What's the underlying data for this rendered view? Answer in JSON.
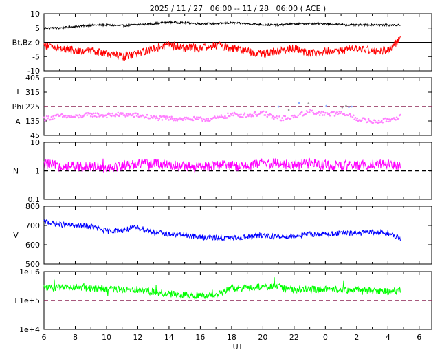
{
  "title": "2025 / 11 / 27   06:00 -- 11 / 28   06:00 ( ACE )",
  "xlabel": "UT",
  "colors": {
    "bt": "#000000",
    "bz": "#ff0000",
    "phi": "#9a9a9a",
    "phi_alt": "#88aaff",
    "angle": "#ff7fff",
    "density": "#ff00ff",
    "speed": "#0000ff",
    "temperature": "#00ff00",
    "ref_dash": "#8b2252"
  },
  "chart_data": [
    {
      "type": "line",
      "panel": "magnetic-field",
      "ylabel": "Bt,Bz",
      "ylim": [
        -10,
        10
      ],
      "ytick_labels": [
        "10",
        "5",
        "0",
        "-5",
        "-10"
      ],
      "xlim": [
        6,
        30.8
      ],
      "xtick_labels": [
        "6",
        "8",
        "10",
        "12",
        "14",
        "16",
        "18",
        "20",
        "22",
        "0",
        "2",
        "4",
        "6"
      ],
      "reference_line": 0,
      "series": [
        {
          "key": "Bt",
          "x": [
            6,
            7,
            8,
            9,
            10,
            11,
            12,
            13,
            14,
            15,
            16,
            17,
            18,
            19,
            20,
            21,
            22,
            23,
            24,
            25,
            26,
            27,
            28,
            28.8
          ],
          "values": [
            5,
            5,
            5.5,
            6,
            6,
            5.8,
            6.2,
            6.5,
            7,
            6.8,
            6.5,
            6.5,
            6.8,
            6.5,
            6.2,
            6,
            6.5,
            6.5,
            6.5,
            6.2,
            6,
            6.2,
            6,
            6
          ]
        },
        {
          "key": "Bz",
          "x": [
            6,
            7,
            8,
            9,
            10,
            11,
            12,
            13,
            14,
            15,
            16,
            17,
            18,
            19,
            20,
            21,
            22,
            23,
            24,
            25,
            26,
            27,
            28,
            28.8
          ],
          "values": [
            -1,
            -2,
            -3,
            -3,
            -4,
            -5,
            -4,
            -2,
            -1,
            -2,
            -2,
            -1,
            -2,
            -3,
            -4,
            -3,
            -2,
            -4,
            -3,
            -3,
            -2,
            -3,
            -3,
            1
          ]
        }
      ]
    },
    {
      "type": "scatter",
      "panel": "angle",
      "ylabel": [
        "T",
        "Phi",
        "A"
      ],
      "ylim": [
        45,
        405
      ],
      "ytick_labels": [
        "405",
        "315",
        "225",
        "135",
        "45"
      ],
      "xlim": [
        6,
        30.8
      ],
      "reference_line": 225,
      "series": [
        {
          "key": "Phi",
          "x": [
            6,
            7,
            8,
            9,
            10,
            11,
            12,
            13,
            14,
            15,
            16,
            17,
            18,
            19,
            20,
            21,
            22,
            23,
            24,
            25,
            26,
            27,
            28,
            28.8
          ],
          "values": [
            150,
            165,
            160,
            175,
            170,
            175,
            170,
            155,
            150,
            150,
            145,
            150,
            175,
            170,
            185,
            150,
            160,
            200,
            175,
            185,
            150,
            130,
            140,
            165
          ]
        }
      ]
    },
    {
      "type": "line",
      "panel": "density",
      "ylabel": "N",
      "yscale": "log",
      "ylim": [
        0.1,
        10
      ],
      "ytick_labels": [
        "10",
        "1",
        "0.1"
      ],
      "xlim": [
        6,
        30.8
      ],
      "reference_line": 1,
      "series": [
        {
          "key": "N",
          "x": [
            6,
            7,
            8,
            9,
            10,
            11,
            12,
            13,
            14,
            15,
            16,
            17,
            18,
            19,
            20,
            21,
            22,
            23,
            24,
            25,
            26,
            27,
            28,
            28.8
          ],
          "values": [
            1.7,
            1.5,
            1.4,
            1.5,
            1.3,
            1.5,
            1.8,
            1.8,
            1.6,
            1.4,
            1.3,
            1.6,
            1.5,
            1.4,
            1.9,
            1.8,
            1.6,
            1.8,
            1.6,
            1.5,
            1.5,
            1.7,
            1.8,
            1.6
          ]
        }
      ]
    },
    {
      "type": "line",
      "panel": "speed",
      "ylabel": "V",
      "ylim": [
        500,
        800
      ],
      "ytick_labels": [
        "800",
        "700",
        "600",
        "500"
      ],
      "xlim": [
        6,
        30.8
      ],
      "series": [
        {
          "key": "V",
          "x": [
            6,
            7,
            8,
            9,
            10,
            11,
            12,
            13,
            14,
            15,
            16,
            17,
            18,
            19,
            20,
            21,
            22,
            23,
            24,
            25,
            26,
            27,
            28,
            28.8
          ],
          "values": [
            720,
            705,
            700,
            695,
            670,
            675,
            690,
            665,
            655,
            650,
            640,
            635,
            635,
            640,
            650,
            640,
            645,
            655,
            655,
            660,
            660,
            665,
            660,
            630
          ]
        }
      ]
    },
    {
      "type": "line",
      "panel": "temperature",
      "ylabel": "T",
      "yscale": "log",
      "ylim": [
        10000,
        1000000
      ],
      "ytick_labels": [
        "1e+6",
        "1e+5",
        "1e+4"
      ],
      "xlim": [
        6,
        30.8
      ],
      "reference_line": 100000,
      "series": [
        {
          "key": "T",
          "x": [
            6,
            7,
            8,
            9,
            10,
            11,
            12,
            13,
            14,
            15,
            16,
            17,
            18,
            19,
            20,
            21,
            22,
            23,
            24,
            25,
            26,
            27,
            28,
            28.8
          ],
          "values": [
            280000,
            270000,
            290000,
            260000,
            250000,
            240000,
            240000,
            200000,
            170000,
            150000,
            150000,
            140000,
            260000,
            280000,
            300000,
            290000,
            230000,
            250000,
            250000,
            240000,
            230000,
            210000,
            200000,
            220000
          ]
        }
      ]
    }
  ]
}
